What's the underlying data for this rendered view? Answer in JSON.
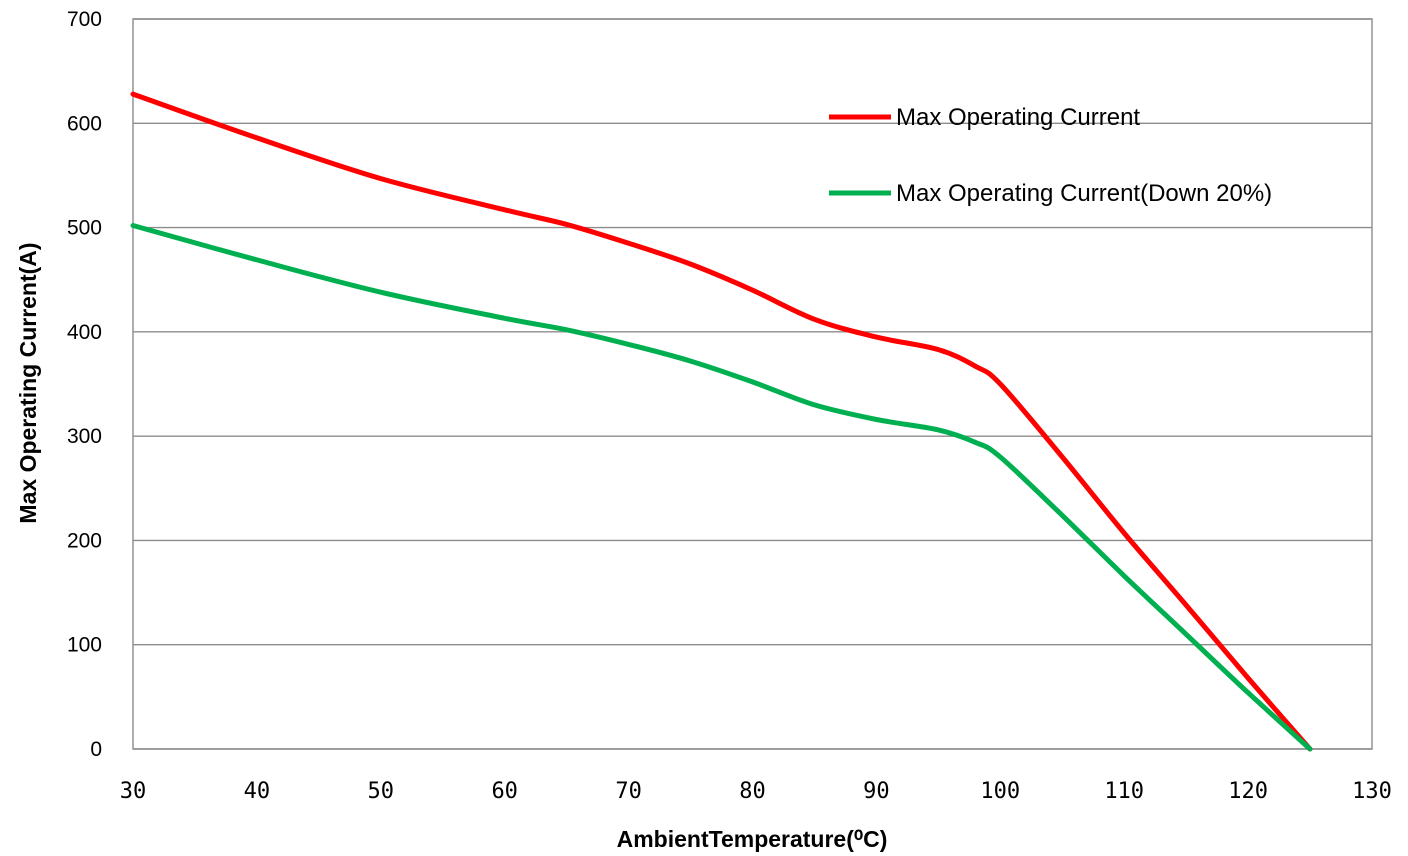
{
  "chart_data": {
    "type": "line",
    "title": "",
    "xlabel": "AmbientTemperature(⁰C)",
    "ylabel": "Max  Operating Current(A)",
    "xlim": [
      30,
      130
    ],
    "ylim": [
      0,
      700
    ],
    "xticks": [
      30,
      40,
      50,
      60,
      70,
      80,
      90,
      100,
      110,
      120,
      130
    ],
    "yticks": [
      0,
      100,
      200,
      300,
      400,
      500,
      600,
      700
    ],
    "grid": "horizontal",
    "legend_position": "top-right",
    "series": [
      {
        "name": "Max Operating Current",
        "color": "#ff0000",
        "x": [
          30,
          40,
          50,
          60,
          65,
          70,
          75,
          80,
          85,
          90,
          95,
          98,
          100,
          105,
          110,
          115,
          120,
          125
        ],
        "y": [
          628,
          586,
          547,
          517,
          503,
          485,
          465,
          440,
          412,
          395,
          383,
          367,
          350,
          280,
          207,
          138,
          68,
          0
        ]
      },
      {
        "name": "Max Operating Current(Down 20%)",
        "color": "#00b050",
        "x": [
          30,
          40,
          50,
          60,
          65,
          70,
          75,
          80,
          85,
          90,
          95,
          98,
          100,
          105,
          110,
          115,
          120,
          125
        ],
        "y": [
          502,
          469,
          438,
          413,
          402,
          388,
          372,
          352,
          330,
          316,
          306,
          294,
          280,
          224,
          166,
          110,
          54,
          0
        ]
      }
    ]
  }
}
